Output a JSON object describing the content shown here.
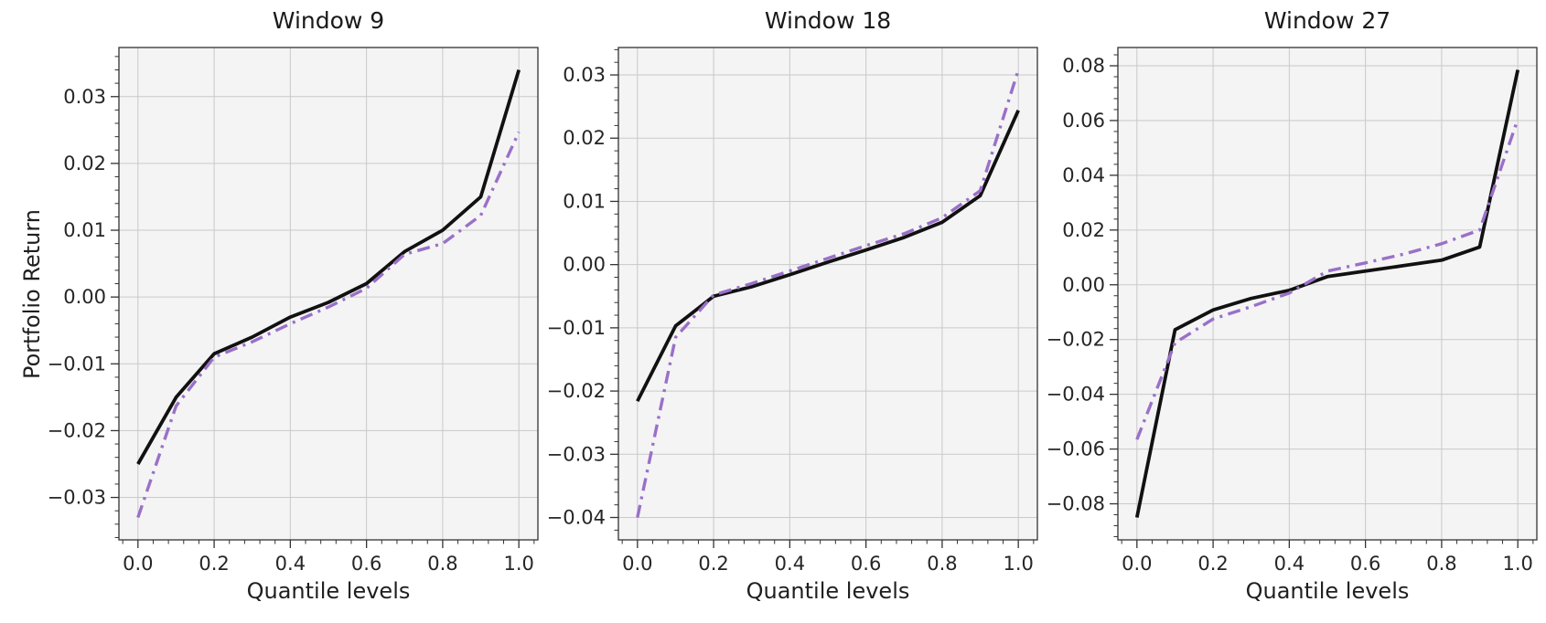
{
  "figure": {
    "background": "#ffffff",
    "plot_background": "#f4f4f5",
    "grid_color": "#c9c9c9",
    "spine_color": "#333333",
    "text_color": "#262626"
  },
  "chart_data": [
    {
      "type": "line",
      "title": "Window 9",
      "xlabel": "Quantile levels",
      "ylabel": "Portfolio Return",
      "x": [
        0.0,
        0.1,
        0.2,
        0.3,
        0.4,
        0.5,
        0.6,
        0.7,
        0.8,
        0.9,
        1.0
      ],
      "xlim": [
        -0.05,
        1.05
      ],
      "ylim": [
        -0.03635,
        0.03735
      ],
      "grid": true,
      "legend_position": "none",
      "xticks": {
        "values": [
          0.0,
          0.2,
          0.4,
          0.6,
          0.8,
          1.0
        ],
        "labels": [
          "0.0",
          "0.2",
          "0.4",
          "0.6",
          "0.8",
          "1.0"
        ],
        "minor_step": 0.04
      },
      "yticks": {
        "values": [
          0.03,
          0.02,
          0.01,
          0.0,
          -0.01,
          -0.02,
          -0.03
        ],
        "labels": [
          "0.03",
          "0.02",
          "0.01",
          "0.00",
          "−0.01",
          "−0.02",
          "−0.03"
        ],
        "minor_step": 0.002
      },
      "series": [
        {
          "name": "solid-black",
          "color": "#111111",
          "style": "solid",
          "width": 3.8,
          "values": [
            -0.025,
            -0.015,
            -0.0085,
            -0.006,
            -0.003,
            -0.0008,
            0.002,
            0.0068,
            0.01,
            0.015,
            0.034
          ]
        },
        {
          "name": "dashdot-purple",
          "color": "#9a70c8",
          "style": "dashdot",
          "width": 3.4,
          "values": [
            -0.033,
            -0.0163,
            -0.009,
            -0.0067,
            -0.004,
            -0.0015,
            0.0013,
            0.0064,
            0.008,
            0.0122,
            0.0247
          ]
        }
      ]
    },
    {
      "type": "line",
      "title": "Window 18",
      "xlabel": "Quantile levels",
      "ylabel": "",
      "x": [
        0.0,
        0.1,
        0.2,
        0.3,
        0.4,
        0.5,
        0.6,
        0.7,
        0.8,
        0.9,
        1.0
      ],
      "xlim": [
        -0.05,
        1.05
      ],
      "ylim": [
        -0.04354,
        0.03434
      ],
      "grid": true,
      "legend_position": "none",
      "xticks": {
        "values": [
          0.0,
          0.2,
          0.4,
          0.6,
          0.8,
          1.0
        ],
        "labels": [
          "0.0",
          "0.2",
          "0.4",
          "0.6",
          "0.8",
          "1.0"
        ],
        "minor_step": 0.04
      },
      "yticks": {
        "values": [
          0.03,
          0.02,
          0.01,
          0.0,
          -0.01,
          -0.02,
          -0.03,
          -0.04
        ],
        "labels": [
          "0.03",
          "0.02",
          "0.01",
          "0.00",
          "−0.01",
          "−0.02",
          "−0.03",
          "−0.04"
        ],
        "minor_step": 0.002
      },
      "series": [
        {
          "name": "solid-black",
          "color": "#111111",
          "style": "solid",
          "width": 3.8,
          "values": [
            -0.0216,
            -0.0097,
            -0.005,
            -0.0035,
            -0.0016,
            0.0004,
            0.0023,
            0.0043,
            0.0067,
            0.0109,
            0.0244
          ]
        },
        {
          "name": "dashdot-purple",
          "color": "#9a70c8",
          "style": "dashdot",
          "width": 3.4,
          "values": [
            -0.04,
            -0.0115,
            -0.0048,
            -0.003,
            -0.001,
            0.001,
            0.003,
            0.0049,
            0.0074,
            0.0117,
            0.0308
          ]
        }
      ]
    },
    {
      "type": "line",
      "title": "Window 27",
      "xlabel": "Quantile levels",
      "ylabel": "",
      "x": [
        0.0,
        0.1,
        0.2,
        0.3,
        0.4,
        0.5,
        0.6,
        0.7,
        0.8,
        0.9,
        1.0
      ],
      "xlim": [
        -0.05,
        1.05
      ],
      "ylim": [
        -0.093175,
        0.086675
      ],
      "grid": true,
      "legend_position": "none",
      "xticks": {
        "values": [
          0.0,
          0.2,
          0.4,
          0.6,
          0.8,
          1.0
        ],
        "labels": [
          "0.0",
          "0.2",
          "0.4",
          "0.6",
          "0.8",
          "1.0"
        ],
        "minor_step": 0.04
      },
      "yticks": {
        "values": [
          0.08,
          0.06,
          0.04,
          0.02,
          0.0,
          -0.02,
          -0.04,
          -0.06,
          -0.08
        ],
        "labels": [
          "0.08",
          "0.06",
          "0.04",
          "0.02",
          "0.00",
          "−0.02",
          "−0.04",
          "−0.06",
          "−0.08"
        ],
        "minor_step": 0.004
      },
      "series": [
        {
          "name": "solid-black",
          "color": "#111111",
          "style": "solid",
          "width": 3.8,
          "values": [
            -0.085,
            -0.0164,
            -0.0092,
            -0.005,
            -0.002,
            0.003,
            0.005,
            0.007,
            0.009,
            0.0138,
            0.0785
          ]
        },
        {
          "name": "dashdot-purple",
          "color": "#9a70c8",
          "style": "dashdot",
          "width": 3.4,
          "values": [
            -0.0565,
            -0.0212,
            -0.0125,
            -0.008,
            -0.003,
            0.005,
            0.008,
            0.0112,
            0.015,
            0.02,
            0.0605
          ]
        }
      ]
    }
  ]
}
